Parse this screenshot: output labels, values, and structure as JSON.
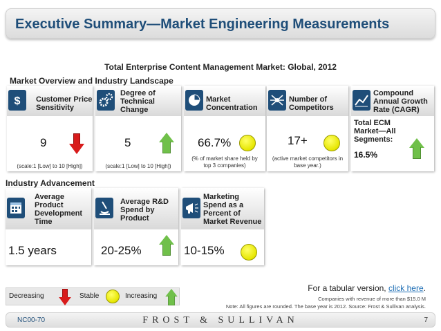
{
  "header": {
    "title": "Executive Summary—Market Engineering Measurements"
  },
  "subtitle": "Total Enterprise Content Management Market: Global, 2012",
  "overview": {
    "section_label": "Market Overview and Industry Landscape",
    "cards": [
      {
        "label_lines": [
          "Customer Price",
          "Sensitivity"
        ],
        "value": "9",
        "indicator": "decreasing",
        "note_lines": [
          "(scale:1 [Low] to 10 [High])"
        ],
        "icon": "dollar-sign-icon"
      },
      {
        "label_lines": [
          "Degree of",
          "Technical",
          "Change"
        ],
        "value": "5",
        "indicator": "increasing",
        "note_lines": [
          "(scale:1 [Low] to 10 [High])"
        ],
        "icon": "gears-icon"
      },
      {
        "label_lines": [
          "Market",
          "Concentration"
        ],
        "value": "66.7%",
        "indicator": "stable",
        "note_lines": [
          "(% of market share held by",
          "top 3 companies)"
        ],
        "icon": "pie-chart-icon"
      },
      {
        "label_lines": [
          "Number of",
          "Competitors"
        ],
        "value": "17+",
        "indicator": "stable",
        "note_lines": [
          "(active market competitors in",
          "base year.)"
        ],
        "icon": "network-icon"
      },
      {
        "label_lines": [
          "Compound",
          "Annual Growth",
          "Rate (CAGR)"
        ],
        "value": "16.5%",
        "indicator": "increasing",
        "sub_label_lines": [
          "Total ECM",
          "Market—All",
          "Segments:"
        ],
        "icon": "line-chart-icon"
      }
    ]
  },
  "advancement": {
    "section_label": "Industry Advancement",
    "cards": [
      {
        "label_lines": [
          "Average",
          "Product",
          "Development",
          "Time"
        ],
        "value": "1.5 years",
        "icon": "calendar-icon"
      },
      {
        "label_lines": [
          "Average R&D",
          "Spend by",
          "Product"
        ],
        "value": "20-25%",
        "indicator": "increasing",
        "icon": "microscope-icon"
      },
      {
        "label_lines": [
          "Marketing",
          "Spend as a",
          "Percent of",
          "Market Revenue"
        ],
        "value": "10-15%",
        "indicator": "stable",
        "icon": "megaphone-icon"
      }
    ]
  },
  "legend": {
    "decreasing": "Decreasing",
    "stable": "Stable",
    "increasing": "Increasing"
  },
  "tabular": {
    "text": "For a tabular version, ",
    "link": "click here",
    "end": "."
  },
  "fine_print": {
    "companies": "Companies with revenue of more than $15.0 M",
    "note": "Note: All figures are rounded. The base year is 2012. Source: Frost & Sullivan analysis."
  },
  "footer": {
    "code": "NC00-70",
    "brand": "FROST & SULLIVAN",
    "page": "7"
  },
  "colors": {
    "accent": "#1f4e79",
    "down": "#d81b1b",
    "up": "#70c04a",
    "stable": "#e6e600"
  }
}
